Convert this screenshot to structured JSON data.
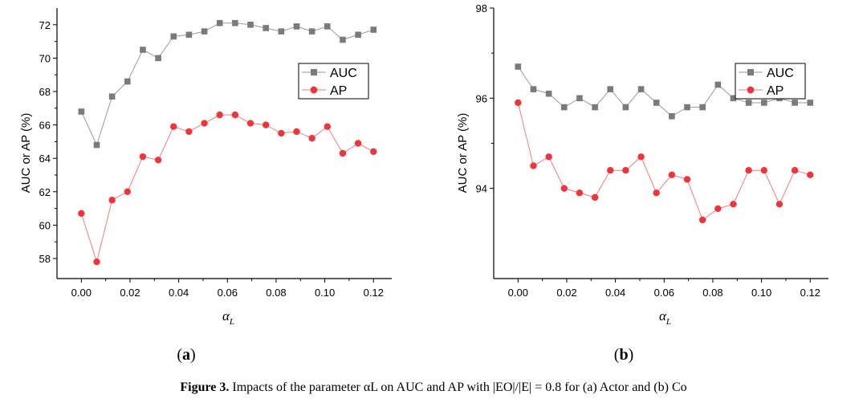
{
  "figure": {
    "caption_label": "Figure 3.",
    "caption_text": "Impacts of the parameter αL on AUC and AP with |EO|/|E| = 0.8 for (a) Actor and (b) Co"
  },
  "colors": {
    "auc": "#7a7a7a",
    "ap": "#f0353a",
    "auc_line": "#9a9a9a",
    "ap_line": "#f47a7d"
  },
  "chart_data": [
    {
      "type": "line",
      "panel_label": "(a)",
      "xlabel": "α_L",
      "ylabel": "AUC or AP (%)",
      "x": [
        0.0,
        0.00632,
        0.01263,
        0.01895,
        0.02526,
        0.03158,
        0.03789,
        0.04421,
        0.05053,
        0.05684,
        0.06316,
        0.06947,
        0.07579,
        0.08211,
        0.08842,
        0.09474,
        0.10105,
        0.10737,
        0.11368,
        0.12
      ],
      "xlim": [
        -0.01,
        0.1275
      ],
      "ylim": [
        56.8,
        73.0
      ],
      "xticks": [
        0.0,
        0.02,
        0.04,
        0.06,
        0.08,
        0.1,
        0.12
      ],
      "xtick_labels": [
        "0.00",
        "0.02",
        "0.04",
        "0.06",
        "0.08",
        "0.10",
        "0.12"
      ],
      "yticks": [
        58,
        60,
        62,
        64,
        66,
        68,
        70,
        72
      ],
      "ytick_labels": [
        "58",
        "60",
        "62",
        "64",
        "66",
        "68",
        "70",
        "72"
      ],
      "series": [
        {
          "name": "AUC",
          "marker": "square",
          "values": [
            66.8,
            64.8,
            67.7,
            68.6,
            70.5,
            70.0,
            71.3,
            71.4,
            71.6,
            72.1,
            72.1,
            72.0,
            71.8,
            71.6,
            71.9,
            71.6,
            71.9,
            71.1,
            71.4,
            71.7
          ]
        },
        {
          "name": "AP",
          "marker": "circle",
          "values": [
            60.7,
            57.8,
            61.5,
            62.0,
            64.1,
            63.9,
            65.9,
            65.6,
            66.1,
            66.6,
            66.6,
            66.1,
            66.0,
            65.5,
            65.6,
            65.2,
            65.9,
            64.3,
            64.9,
            64.4
          ]
        }
      ],
      "legend": "upper-right"
    },
    {
      "type": "line",
      "panel_label": "(b)",
      "xlabel": "α_L",
      "ylabel": "AUC or AP (%)",
      "x": [
        0.0,
        0.00632,
        0.01263,
        0.01895,
        0.02526,
        0.03158,
        0.03789,
        0.04421,
        0.05053,
        0.05684,
        0.06316,
        0.06947,
        0.07579,
        0.08211,
        0.08842,
        0.09474,
        0.10105,
        0.10737,
        0.11368,
        0.12
      ],
      "xlim": [
        -0.01,
        0.1275
      ],
      "ylim": [
        92.0,
        98.0
      ],
      "xticks": [
        0.0,
        0.02,
        0.04,
        0.06,
        0.08,
        0.1,
        0.12
      ],
      "xtick_labels": [
        "0.00",
        "0.02",
        "0.04",
        "0.06",
        "0.08",
        "0.10",
        "0.12"
      ],
      "yticks": [
        94,
        96,
        98
      ],
      "ytick_labels": [
        "94",
        "96",
        "98"
      ],
      "series": [
        {
          "name": "AUC",
          "marker": "square",
          "values": [
            96.7,
            96.2,
            96.1,
            95.8,
            96.0,
            95.8,
            96.2,
            95.8,
            96.2,
            95.9,
            95.6,
            95.8,
            95.8,
            96.3,
            96.0,
            95.9,
            95.9,
            96.0,
            95.9,
            95.9
          ]
        },
        {
          "name": "AP",
          "marker": "circle",
          "values": [
            95.9,
            94.5,
            94.7,
            94.0,
            93.9,
            93.8,
            94.4,
            94.4,
            94.7,
            93.9,
            94.3,
            94.2,
            93.3,
            93.55,
            93.65,
            94.4,
            94.4,
            93.65,
            94.4,
            94.3
          ]
        }
      ],
      "legend": "upper-right"
    }
  ]
}
